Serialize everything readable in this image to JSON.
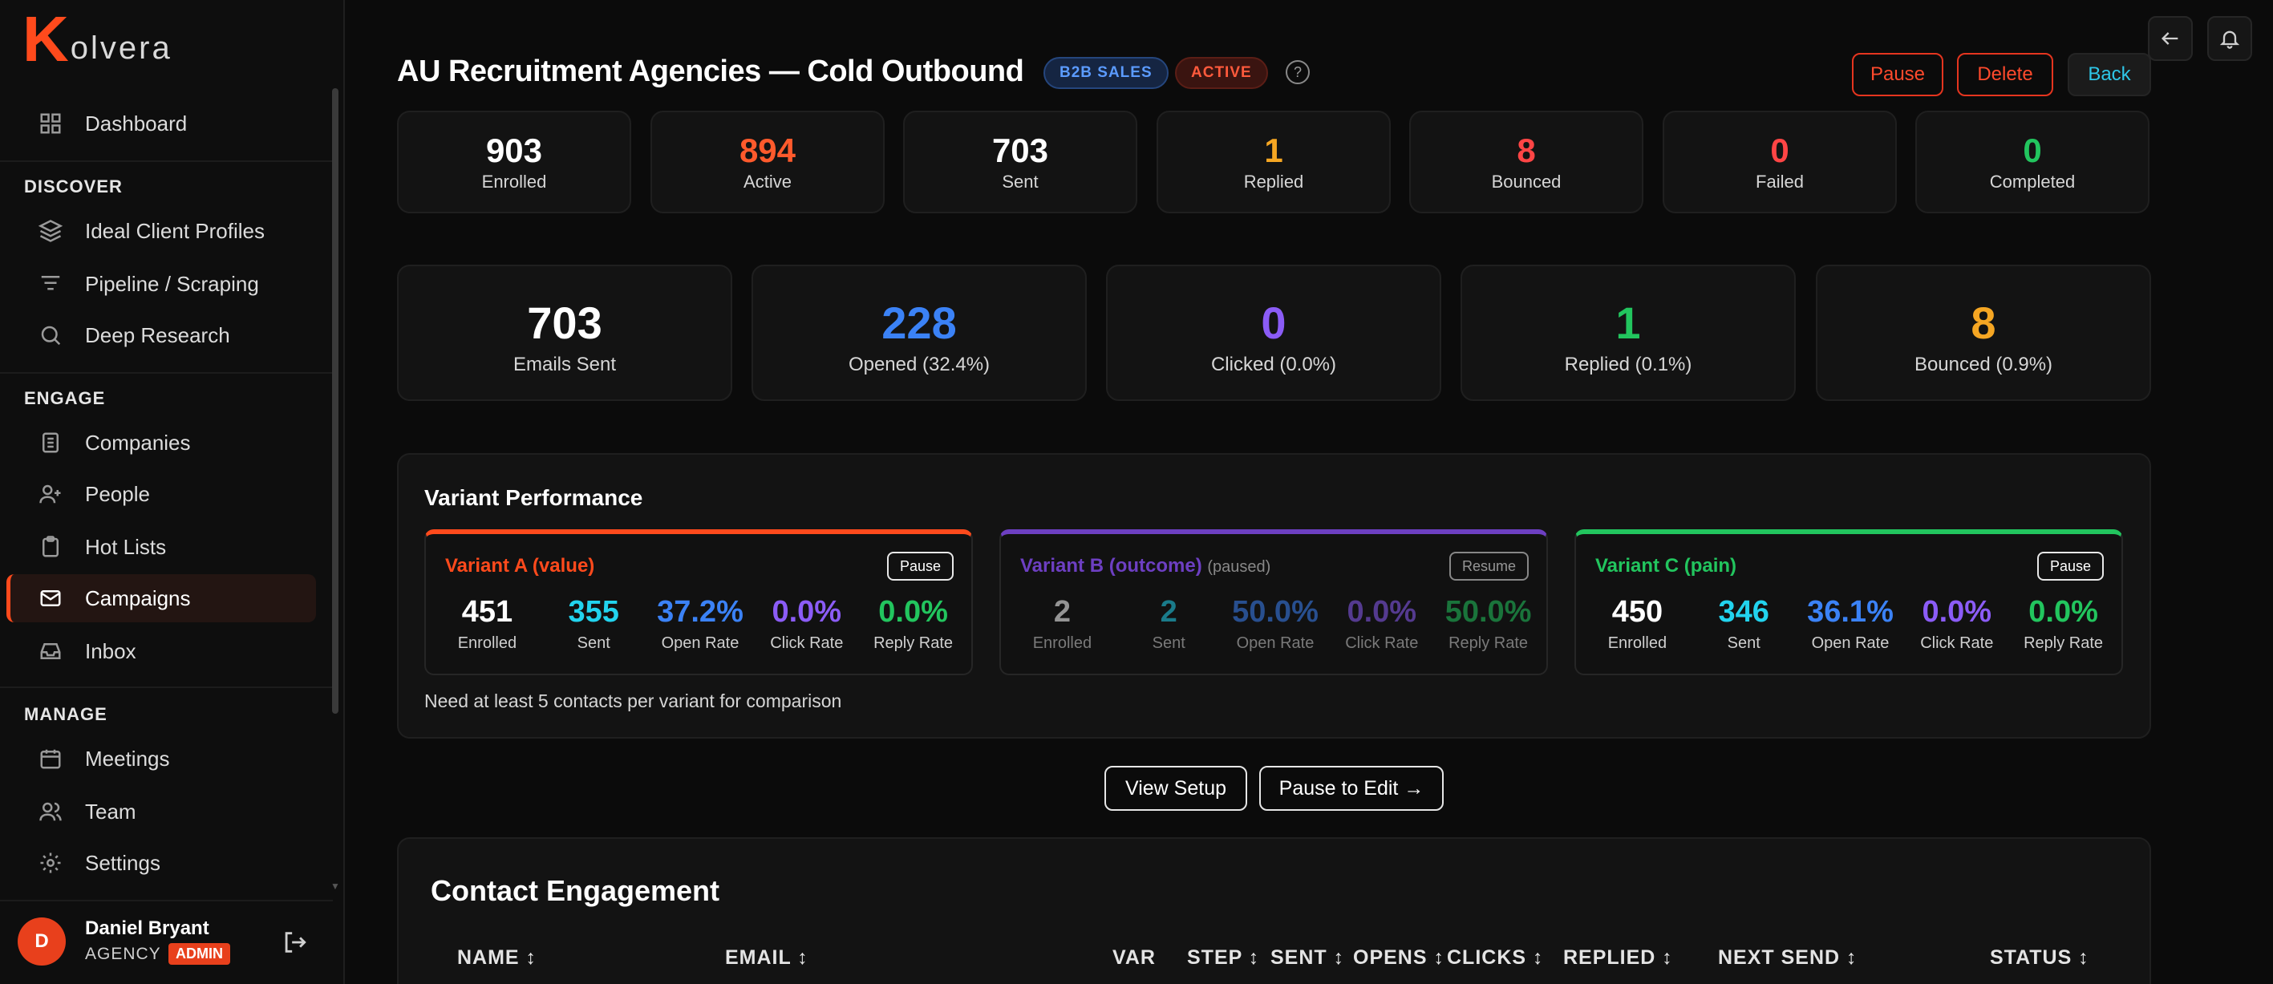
{
  "sidebar": {
    "logo_k": "K",
    "logo_rest": "olvera",
    "dashboard": "Dashboard",
    "sections": {
      "discover": "DISCOVER",
      "engage": "ENGAGE",
      "manage": "MANAGE"
    },
    "items": {
      "icp": "Ideal Client Profiles",
      "pipeline": "Pipeline / Scraping",
      "research": "Deep Research",
      "companies": "Companies",
      "people": "People",
      "hotlists": "Hot Lists",
      "campaigns": "Campaigns",
      "inbox": "Inbox",
      "meetings": "Meetings",
      "team": "Team",
      "settings": "Settings"
    },
    "user": {
      "initial": "D",
      "name": "Daniel Bryant",
      "role": "AGENCY",
      "badge": "ADMIN"
    }
  },
  "header": {
    "title": "AU Recruitment Agencies — Cold Outbound",
    "badge_type": "B2B SALES",
    "badge_status": "ACTIVE",
    "help": "?",
    "pause": "Pause",
    "delete": "Delete",
    "back": "Back"
  },
  "enrollment_stats": [
    {
      "value": "903",
      "label": "Enrolled",
      "color": "#ffffff"
    },
    {
      "value": "894",
      "label": "Active",
      "color": "#ff5a2c"
    },
    {
      "value": "703",
      "label": "Sent",
      "color": "#ffffff"
    },
    {
      "value": "1",
      "label": "Replied",
      "color": "#f5a623"
    },
    {
      "value": "8",
      "label": "Bounced",
      "color": "#ff4545"
    },
    {
      "value": "0",
      "label": "Failed",
      "color": "#ff4545"
    },
    {
      "value": "0",
      "label": "Completed",
      "color": "#22c55e"
    }
  ],
  "email_stats": [
    {
      "value": "703",
      "label": "Emails Sent",
      "color": "#ffffff"
    },
    {
      "value": "228",
      "label": "Opened (32.4%)",
      "color": "#3b82f6"
    },
    {
      "value": "0",
      "label": "Clicked (0.0%)",
      "color": "#8b5cf6"
    },
    {
      "value": "1",
      "label": "Replied (0.1%)",
      "color": "#22c55e"
    },
    {
      "value": "8",
      "label": "Bounced (0.9%)",
      "color": "#f5a623"
    }
  ],
  "variants": {
    "title": "Variant Performance",
    "note": "Need at least 5 contacts per variant for comparison",
    "stat_labels": [
      "Enrolled",
      "Sent",
      "Open Rate",
      "Click Rate",
      "Reply Rate"
    ],
    "stat_colors": [
      "#ffffff",
      "#22d3ee",
      "#3b82f6",
      "#8b5cf6",
      "#22c55e"
    ],
    "list": [
      {
        "name": "Variant A (value)",
        "paused_label": "",
        "button": "Pause",
        "color": "#ff4a1c",
        "dim": false,
        "values": [
          "451",
          "355",
          "37.2%",
          "0.0%",
          "0.0%"
        ]
      },
      {
        "name": "Variant B (outcome)",
        "paused_label": "(paused)",
        "button": "Resume",
        "color": "#6d3fc2",
        "dim": true,
        "values": [
          "2",
          "2",
          "50.0%",
          "0.0%",
          "50.0%"
        ]
      },
      {
        "name": "Variant C (pain)",
        "paused_label": "",
        "button": "Pause",
        "color": "#22c55e",
        "dim": false,
        "values": [
          "450",
          "346",
          "36.1%",
          "0.0%",
          "0.0%"
        ]
      }
    ]
  },
  "actions": {
    "view_setup": "View Setup",
    "pause_edit": "Pause to Edit →"
  },
  "engagement": {
    "title": "Contact Engagement",
    "columns": [
      "NAME ↕",
      "EMAIL ↕",
      "VAR",
      "STEP ↕",
      "SENT ↕",
      "OPENS ↕",
      "CLICKS ↕",
      "REPLIED ↕",
      "NEXT SEND ↕",
      "STATUS ↕"
    ]
  }
}
